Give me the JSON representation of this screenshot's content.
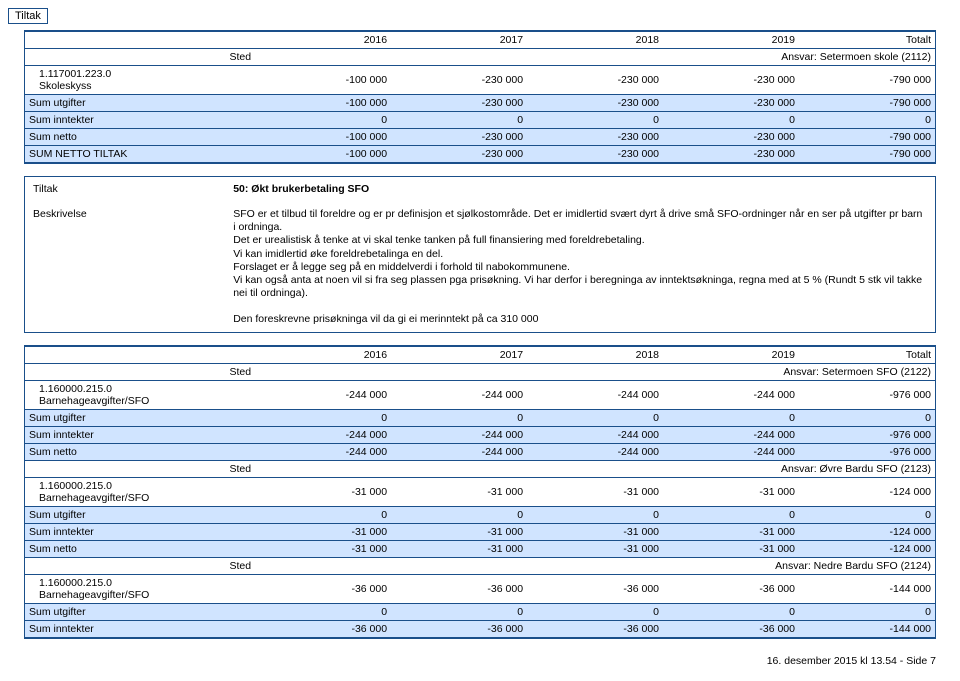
{
  "labels": {
    "tiltak": "Tiltak",
    "sted": "Sted",
    "beskrivelse": "Beskrivelse",
    "sum_utgifter": "Sum utgifter",
    "sum_inntekter": "Sum inntekter",
    "sum_netto": "Sum netto",
    "sum_netto_tiltak": "SUM NETTO TILTAK"
  },
  "years": [
    "2016",
    "2017",
    "2018",
    "2019",
    "Totalt"
  ],
  "block1": {
    "sted_ansvar": "Ansvar: Setermoen skole (2112)",
    "item_id": "1.117001.223.0",
    "item_name": "Skoleskyss",
    "item_vals": [
      "-100 000",
      "-230 000",
      "-230 000",
      "-230 000",
      "-790 000"
    ],
    "sum_utgifter": [
      "-100 000",
      "-230 000",
      "-230 000",
      "-230 000",
      "-790 000"
    ],
    "sum_inntekter": [
      "0",
      "0",
      "0",
      "0",
      "0"
    ],
    "sum_netto": [
      "-100 000",
      "-230 000",
      "-230 000",
      "-230 000",
      "-790 000"
    ],
    "sum_netto_tiltak": [
      "-100 000",
      "-230 000",
      "-230 000",
      "-230 000",
      "-790 000"
    ]
  },
  "desc": {
    "tiltak_title": "50: Økt brukerbetaling SFO",
    "text": "SFO er et tilbud til foreldre og er pr definisjon et sjølkostområde. Det er imidlertid svært dyrt å drive små SFO-ordninger når en ser på utgifter pr barn i ordninga.\nDet er urealistisk å tenke at vi skal tenke tanken på full finansiering med foreldrebetaling.\nVi kan imidlertid øke foreldrebetalinga en del.\nForslaget er å legge seg på en middelverdi i forhold til nabokommunene.\nVi kan også anta at noen vil si fra seg plassen pga prisøkning. Vi har derfor i beregninga av inntektsøkninga, regna med at 5 % (Rundt 5 stk vil takke nei til ordninga).\n\nDen foreskrevne prisøkninga vil da gi ei merinntekt på ca 310 000"
  },
  "block2": {
    "sections": [
      {
        "ansvar": "Ansvar: Setermoen SFO (2122)",
        "item_id": "1.160000.215.0",
        "item_name": "Barnehageavgifter/SFO",
        "item_vals": [
          "-244 000",
          "-244 000",
          "-244 000",
          "-244 000",
          "-976 000"
        ],
        "sum_utgifter": [
          "0",
          "0",
          "0",
          "0",
          "0"
        ],
        "sum_inntekter": [
          "-244 000",
          "-244 000",
          "-244 000",
          "-244 000",
          "-976 000"
        ],
        "sum_netto": [
          "-244 000",
          "-244 000",
          "-244 000",
          "-244 000",
          "-976 000"
        ]
      },
      {
        "ansvar": "Ansvar: Øvre Bardu SFO (2123)",
        "item_id": "1.160000.215.0",
        "item_name": "Barnehageavgifter/SFO",
        "item_vals": [
          "-31 000",
          "-31 000",
          "-31 000",
          "-31 000",
          "-124 000"
        ],
        "sum_utgifter": [
          "0",
          "0",
          "0",
          "0",
          "0"
        ],
        "sum_inntekter": [
          "-31 000",
          "-31 000",
          "-31 000",
          "-31 000",
          "-124 000"
        ],
        "sum_netto": [
          "-31 000",
          "-31 000",
          "-31 000",
          "-31 000",
          "-124 000"
        ]
      },
      {
        "ansvar": "Ansvar: Nedre Bardu SFO (2124)",
        "item_id": "1.160000.215.0",
        "item_name": "Barnehageavgifter/SFO",
        "item_vals": [
          "-36 000",
          "-36 000",
          "-36 000",
          "-36 000",
          "-144 000"
        ],
        "sum_utgifter": [
          "0",
          "0",
          "0",
          "0",
          "0"
        ],
        "sum_inntekter": [
          "-36 000",
          "-36 000",
          "-36 000",
          "-36 000",
          "-144 000"
        ]
      }
    ]
  },
  "footer": "16. desember 2015 kl 13.54 - Side 7",
  "colors": {
    "border": "#1a4f8a",
    "highlight": "#d0e4ff"
  }
}
